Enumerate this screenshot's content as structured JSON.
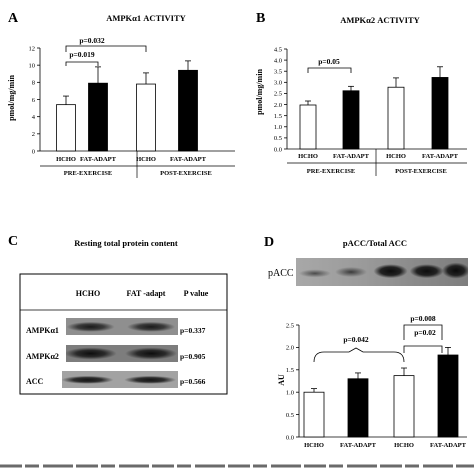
{
  "panels": [
    {
      "letter": "A",
      "title": "AMPKα1 ACTIVITY",
      "ylabel": "pmol/mg/min",
      "ylim": [
        0,
        12
      ],
      "ticks": [
        0,
        2,
        4,
        6,
        8,
        10,
        12
      ],
      "bar_labels": [
        "HCHO",
        "FAT-ADAPT",
        "HCHO",
        "FAT-ADAPT"
      ],
      "groups": [
        "PRE-EXERCISE",
        "POST-EXERCISE"
      ],
      "annotations": [
        "p=0.032",
        "p=0.019"
      ]
    },
    {
      "letter": "B",
      "title": "AMPKα2 ACTIVITY",
      "ylabel": "pmol/mg/min",
      "ylim": [
        0,
        4.5
      ],
      "ticks": [
        "0.0",
        "0.5",
        "1.0",
        "1.5",
        "2.0",
        "2.5",
        "3.0",
        "3.5",
        "4.0",
        "4.5"
      ],
      "bar_labels": [
        "HCHO",
        "FAT-ADAPT",
        "HCHO",
        "FAT-ADAPT"
      ],
      "groups": [
        "PRE-EXERCISE",
        "POST-EXERCISE"
      ],
      "annotations": [
        "p=0.05"
      ]
    },
    {
      "letter": "D",
      "title": "pACC/Total ACC",
      "ylabel": "AU",
      "ylim": [
        0,
        2.5
      ],
      "ticks": [
        "0.0",
        "0.5",
        "1.0",
        "1.5",
        "2.0",
        "2.5"
      ],
      "bar_labels": [
        "HCHO",
        "FAT-ADAPT",
        "HCHO",
        "FAT-ADAPT"
      ],
      "groups": [],
      "annotations": [
        "p=0.008",
        "p=0.042",
        "p=0.02"
      ],
      "blot_label": "pACC"
    }
  ],
  "panel_c": {
    "letter": "C",
    "title": "Resting total protein content",
    "columns": [
      "HCHO",
      "FAT -adapt",
      "P value"
    ],
    "rows": [
      {
        "label": "AMPKα1",
        "p": "p=0.337"
      },
      {
        "label": "AMPKα2",
        "p": "p=0.905"
      },
      {
        "label": "ACC",
        "p": "p=0.566"
      }
    ]
  },
  "chart_data": [
    {
      "type": "bar",
      "title": "AMPKα1 ACTIVITY",
      "ylabel": "pmol/mg/min",
      "categories": [
        "HCHO",
        "FAT-ADAPT",
        "HCHO",
        "FAT-ADAPT"
      ],
      "groups": [
        "PRE-EXERCISE",
        "POST-EXERCISE"
      ],
      "values": [
        5.4,
        7.9,
        7.8,
        9.4
      ],
      "errors": [
        1.0,
        1.9,
        1.3,
        1.1
      ],
      "bar_colors": [
        "#ffffff",
        "#000000",
        "#ffffff",
        "#000000"
      ],
      "ylim": [
        0,
        12
      ],
      "grid": false
    },
    {
      "type": "bar",
      "title": "AMPKα2 ACTIVITY",
      "ylabel": "pmol/mg/min",
      "categories": [
        "HCHO",
        "FAT-ADAPT",
        "HCHO",
        "FAT-ADAPT"
      ],
      "groups": [
        "PRE-EXERCISE",
        "POST-EXERCISE"
      ],
      "values": [
        1.98,
        2.62,
        2.78,
        3.22
      ],
      "errors": [
        0.18,
        0.2,
        0.42,
        0.48
      ],
      "bar_colors": [
        "#ffffff",
        "#000000",
        "#ffffff",
        "#000000"
      ],
      "ylim": [
        0,
        4.5
      ],
      "grid": false
    },
    {
      "type": "bar",
      "title": "pACC/Total ACC",
      "ylabel": "AU",
      "categories": [
        "HCHO",
        "FAT-ADAPT",
        "HCHO",
        "FAT-ADAPT"
      ],
      "values": [
        1.0,
        1.3,
        1.37,
        1.83
      ],
      "errors": [
        0.08,
        0.13,
        0.17,
        0.17
      ],
      "bar_colors": [
        "#ffffff",
        "#000000",
        "#ffffff",
        "#000000"
      ],
      "ylim": [
        0,
        2.5
      ],
      "grid": false
    }
  ]
}
